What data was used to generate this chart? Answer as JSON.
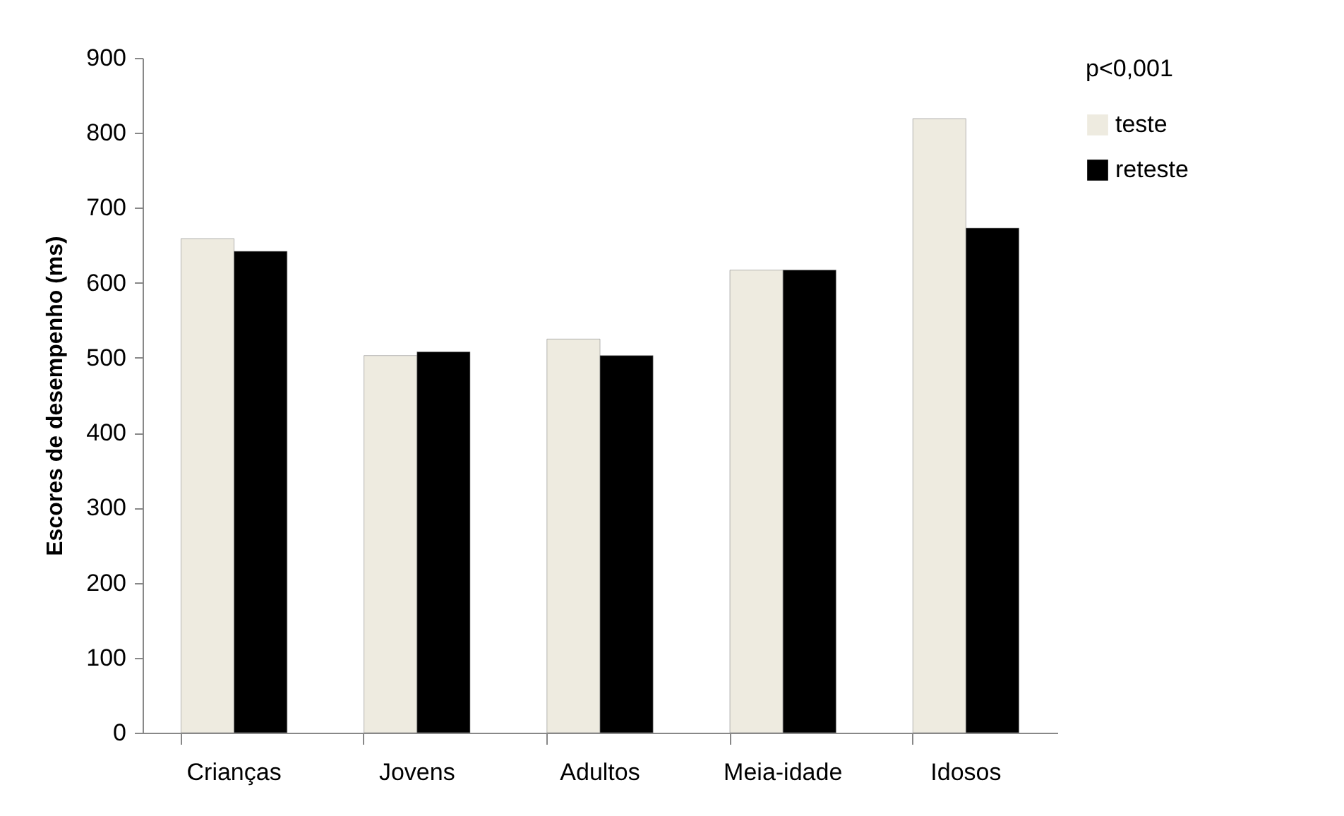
{
  "chart_data": {
    "type": "bar",
    "ylabel": "Escores de desempenho (ms)",
    "legend_title": "p<0,001",
    "legend": "right",
    "categories": [
      "Crianças",
      "Jovens",
      "Adultos",
      "Meia-idade",
      "Idosos"
    ],
    "series": [
      {
        "name": "teste",
        "color": "#eeebe0",
        "values": [
          659,
          503,
          525,
          617,
          819
        ]
      },
      {
        "name": "reteste",
        "color": "#000000",
        "values": [
          642,
          508,
          503,
          617,
          673
        ]
      }
    ],
    "ylim": [
      0,
      900
    ],
    "yticks": [
      0,
      100,
      200,
      300,
      400,
      500,
      600,
      700,
      800,
      900
    ],
    "grid": false
  }
}
